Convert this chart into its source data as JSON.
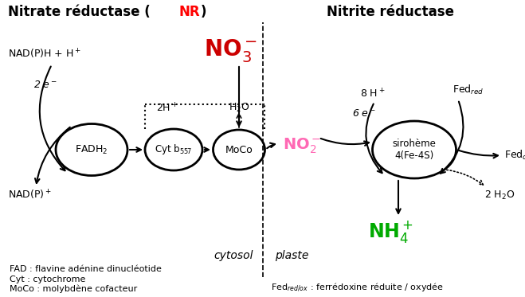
{
  "bg_color": "#ffffff",
  "title_left_black1": "Nitrate réductase (",
  "title_left_red": "NR",
  "title_left_black2": ")",
  "title_right": "Nitrite réductase",
  "label_fadh2": "FADH$_2$",
  "label_cytb": "Cyt b$_{557}$",
  "label_moco": "MoCo",
  "label_siroheme": "sirohème\n4(Fe-4S)",
  "label_no3": "NO$_3^-$",
  "label_no2": "NO$_2^-$",
  "label_nh4": "NH$_4^+$",
  "label_nadph": "NAD(P)H + H$^+$",
  "label_nadp": "NAD(P)$^+$",
  "label_2e": "2 e$^-$",
  "label_2h": "2H$^+$",
  "label_h2o": "H$_2$O",
  "label_8h": "8 H$^+$",
  "label_6e": "6 e$^-$",
  "label_fedred": "Fed$_{red}$",
  "label_fedox": "Fed$_{ox}$",
  "label_2h2o": "2 H$_2$O",
  "label_cytosol": "cytosol",
  "label_plaste": "plaste",
  "footnote1": "FAD : flavine adénine dinucléotide",
  "footnote2": "Cyt : cytochrome",
  "footnote3": "MoCo : molybdène cofacteur",
  "footnote4": "Fed$_{red / ox}$ : ferrédoxine réduite / oxydée",
  "color_no3": "#cc0000",
  "color_no2": "#ff69b4",
  "color_nh4": "#00aa00"
}
